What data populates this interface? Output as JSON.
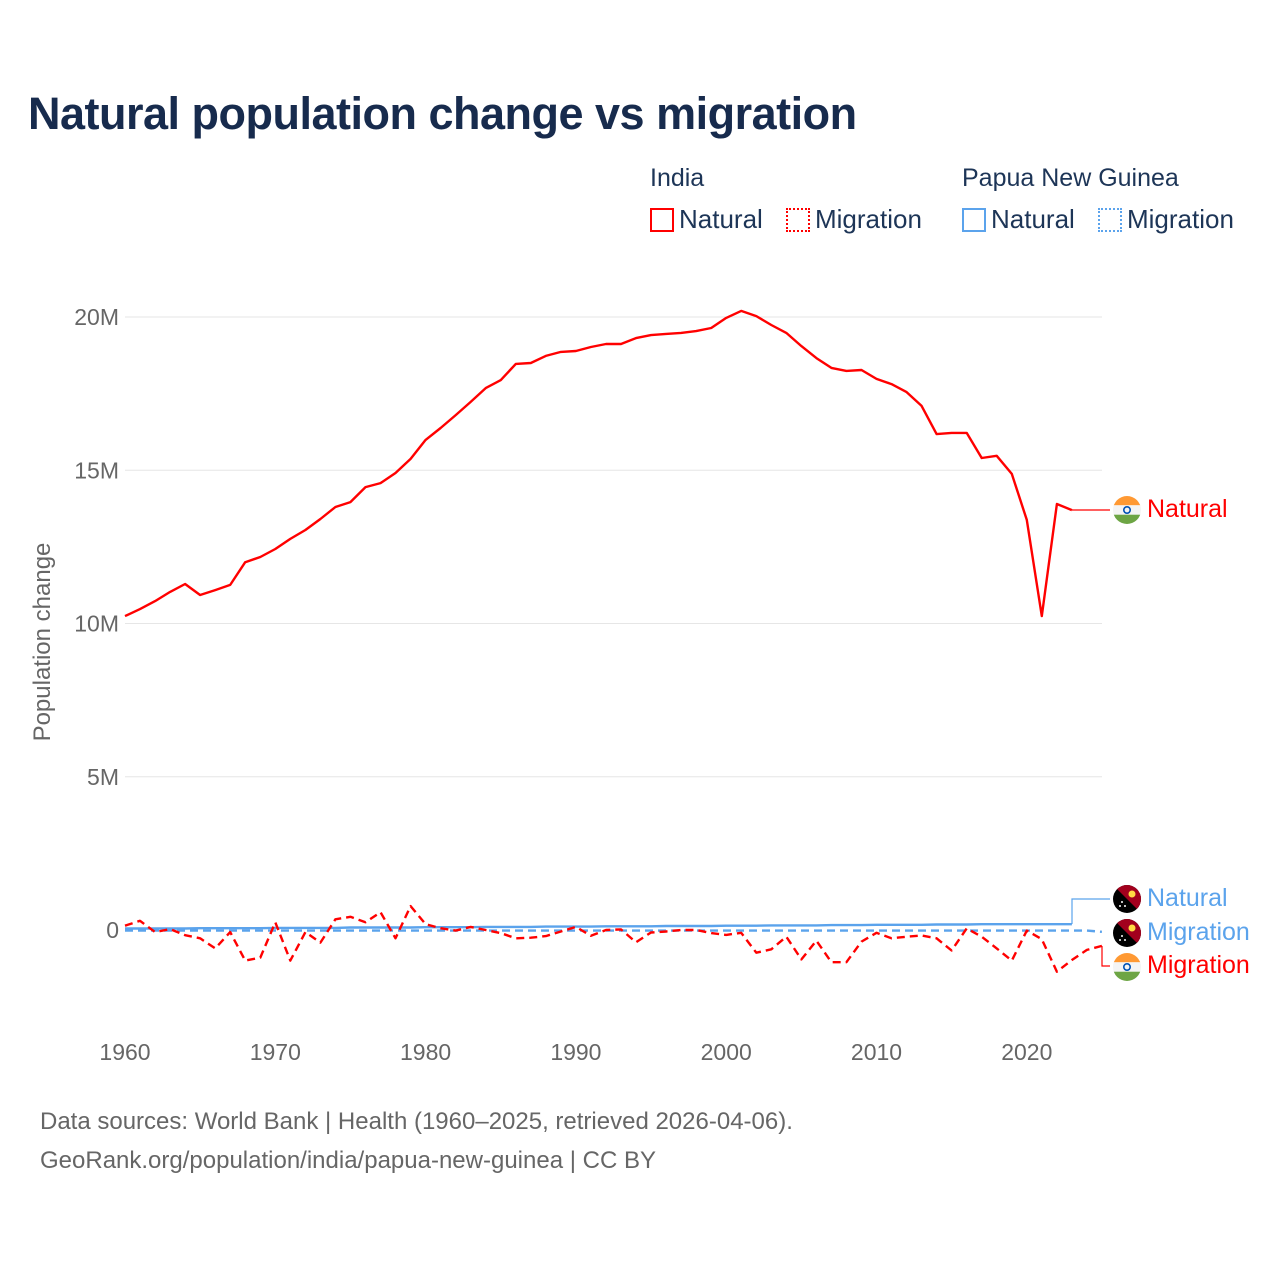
{
  "title": "Natural population change vs migration",
  "legend": {
    "groups": [
      {
        "name": "India",
        "items": [
          {
            "label": "Natural",
            "style": "solid",
            "color": "#ff0000"
          },
          {
            "label": "Migration",
            "style": "dotted",
            "color": "#ff0000"
          }
        ]
      },
      {
        "name": "Papua New Guinea",
        "items": [
          {
            "label": "Natural",
            "style": "solid",
            "color": "#5ba3ec"
          },
          {
            "label": "Migration",
            "style": "dotted",
            "color": "#5ba3ec"
          }
        ]
      }
    ]
  },
  "footer": {
    "line1": "Data sources: World Bank | Health (1960–2025, retrieved 2026-04-06).",
    "line2": "GeoRank.org/population/india/papua-new-guinea | CC BY"
  },
  "chart_data": {
    "type": "line",
    "title": "Natural population change vs migration",
    "xlabel": "",
    "ylabel": "Population change",
    "xlim": [
      1960,
      2025
    ],
    "ylim": [
      -1.6,
      20.5
    ],
    "y_unit": "millions",
    "grid": true,
    "legend_position": "top-right",
    "xticks": [
      1960,
      1970,
      1980,
      1990,
      2000,
      2010,
      2020
    ],
    "xtick_labels": [
      "1960",
      "1970",
      "1980",
      "1990",
      "2000",
      "2010",
      "2020"
    ],
    "yticks": [
      0,
      5,
      10,
      15,
      20
    ],
    "ytick_labels": [
      "0",
      "5M",
      "10M",
      "15M",
      "20M"
    ],
    "series": [
      {
        "name": "India Natural",
        "country": "India",
        "end_label": "Natural",
        "color": "#ff0000",
        "dash": "solid",
        "start": 1960,
        "values": [
          10.24,
          10.47,
          10.73,
          11.03,
          11.29,
          10.93,
          11.09,
          11.26,
          12.0,
          12.17,
          12.43,
          12.76,
          13.05,
          13.41,
          13.8,
          13.96,
          14.45,
          14.58,
          14.91,
          15.37,
          15.99,
          16.38,
          16.8,
          17.23,
          17.68,
          17.94,
          18.47,
          18.5,
          18.73,
          18.86,
          18.89,
          19.02,
          19.12,
          19.12,
          19.31,
          19.41,
          19.45,
          19.48,
          19.54,
          19.64,
          19.97,
          20.2,
          20.03,
          19.74,
          19.48,
          19.05,
          18.66,
          18.34,
          18.24,
          18.27,
          17.98,
          17.81,
          17.55,
          17.1,
          16.18,
          16.22,
          16.22,
          15.4,
          15.47,
          14.88,
          13.38,
          10.24,
          13.9,
          13.7
        ]
      },
      {
        "name": "India Migration",
        "country": "India",
        "end_label": "Migration",
        "color": "#ff0000",
        "dash": "dashed",
        "start": 1960,
        "values": [
          0.14,
          0.3,
          -0.07,
          0.03,
          -0.17,
          -0.27,
          -0.6,
          -0.07,
          -1.0,
          -0.9,
          0.25,
          -1.0,
          -0.07,
          -0.41,
          0.35,
          0.43,
          0.25,
          0.58,
          -0.27,
          0.78,
          0.19,
          0.06,
          -0.02,
          0.1,
          0,
          -0.1,
          -0.27,
          -0.25,
          -0.2,
          -0.05,
          0.1,
          -0.19,
          0,
          0.02,
          -0.4,
          -0.08,
          -0.05,
          0,
          0,
          -0.1,
          -0.16,
          -0.09,
          -0.74,
          -0.63,
          -0.22,
          -0.96,
          -0.35,
          -1.05,
          -1.05,
          -0.38,
          -0.09,
          -0.27,
          -0.22,
          -0.18,
          -0.27,
          -0.67,
          0.05,
          -0.22,
          -0.6,
          -1.0,
          -0.02,
          -0.3,
          -1.36,
          -0.98,
          -0.65,
          -0.52
        ]
      },
      {
        "name": "Papua New Guinea Natural",
        "country": "Papua New Guinea",
        "end_label": "Natural",
        "color": "#5ba3ec",
        "dash": "solid",
        "start": 1960,
        "values": [
          0.05,
          0.05,
          0.05,
          0.05,
          0.05,
          0.06,
          0.06,
          0.06,
          0.06,
          0.06,
          0.07,
          0.07,
          0.07,
          0.07,
          0.07,
          0.08,
          0.08,
          0.08,
          0.08,
          0.08,
          0.09,
          0.09,
          0.09,
          0.09,
          0.1,
          0.1,
          0.1,
          0.1,
          0.11,
          0.11,
          0.11,
          0.11,
          0.12,
          0.12,
          0.12,
          0.12,
          0.13,
          0.13,
          0.13,
          0.13,
          0.14,
          0.14,
          0.14,
          0.15,
          0.15,
          0.15,
          0.15,
          0.16,
          0.16,
          0.16,
          0.17,
          0.17,
          0.17,
          0.17,
          0.18,
          0.18,
          0.18,
          0.19,
          0.19,
          0.19,
          0.19,
          0.19,
          0.19,
          0.19
        ]
      },
      {
        "name": "Papua New Guinea Migration",
        "country": "Papua New Guinea",
        "end_label": "Migration",
        "color": "#5ba3ec",
        "dash": "dashed",
        "start": 1960,
        "values": [
          -0.02,
          -0.02,
          -0.02,
          -0.02,
          -0.02,
          -0.02,
          -0.02,
          -0.02,
          -0.02,
          -0.02,
          -0.02,
          -0.02,
          -0.02,
          -0.02,
          -0.02,
          -0.02,
          -0.02,
          -0.02,
          -0.02,
          -0.02,
          -0.02,
          -0.02,
          -0.02,
          -0.02,
          -0.02,
          -0.02,
          -0.02,
          -0.02,
          -0.02,
          -0.02,
          -0.02,
          -0.02,
          -0.02,
          -0.02,
          -0.02,
          -0.02,
          -0.02,
          -0.02,
          -0.02,
          -0.02,
          -0.02,
          -0.02,
          -0.02,
          -0.02,
          -0.02,
          -0.02,
          -0.02,
          -0.02,
          -0.02,
          -0.02,
          -0.02,
          -0.02,
          -0.02,
          -0.02,
          -0.02,
          -0.02,
          -0.02,
          -0.02,
          -0.02,
          -0.02,
          -0.02,
          -0.02,
          -0.02,
          -0.02,
          -0.02,
          -0.06
        ]
      }
    ]
  }
}
